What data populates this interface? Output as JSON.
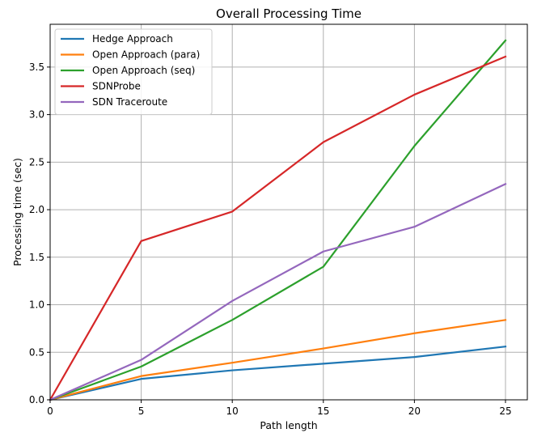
{
  "chart_data": {
    "type": "line",
    "title": "Overall Processing Time",
    "xlabel": "Path length",
    "ylabel": "Processing time (sec)",
    "xlim": [
      0,
      26.2
    ],
    "ylim": [
      0,
      3.95
    ],
    "xticks": [
      0,
      5,
      10,
      15,
      20,
      25
    ],
    "yticks": [
      0.0,
      0.5,
      1.0,
      1.5,
      2.0,
      2.5,
      3.0,
      3.5
    ],
    "grid": true,
    "legend_position": "top-left",
    "x": [
      0,
      5,
      10,
      15,
      20,
      25
    ],
    "series": [
      {
        "name": "Hedge Approach",
        "color": "#1f77b4",
        "values": [
          0,
          0.22,
          0.31,
          0.38,
          0.45,
          0.56
        ]
      },
      {
        "name": "Open Approach (para)",
        "color": "#ff7f0e",
        "values": [
          0,
          0.25,
          0.39,
          0.54,
          0.7,
          0.84
        ]
      },
      {
        "name": "Open Approach (seq)",
        "color": "#2ca02c",
        "values": [
          0,
          0.35,
          0.84,
          1.4,
          2.67,
          3.78
        ]
      },
      {
        "name": "SDNProbe",
        "color": "#d62728",
        "values": [
          0,
          1.67,
          1.98,
          2.71,
          3.21,
          3.61
        ]
      },
      {
        "name": "SDN Traceroute",
        "color": "#9467bd",
        "values": [
          0,
          0.42,
          1.04,
          1.56,
          1.82,
          2.27
        ]
      }
    ]
  }
}
